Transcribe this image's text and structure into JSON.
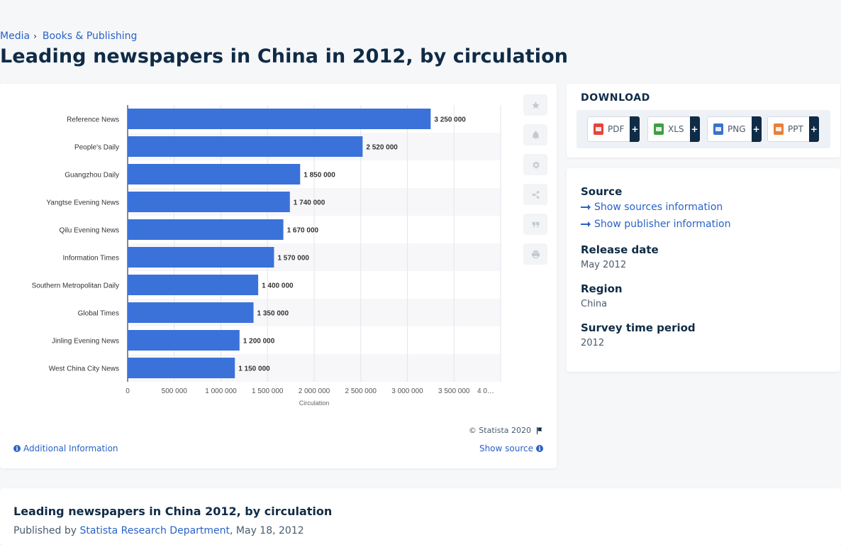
{
  "breadcrumb": {
    "items": [
      "Media",
      "Books & Publishing"
    ],
    "separator": "›"
  },
  "page_title": "Leading newspapers in China in 2012, by circulation",
  "toolbar": {
    "icons": [
      "star-icon",
      "bell-icon",
      "gear-icon",
      "share-icon",
      "quote-icon",
      "print-icon"
    ]
  },
  "chart_footer": {
    "copyright": "© Statista 2020",
    "additional_info": "Additional Information",
    "show_source": "Show source"
  },
  "download": {
    "title": "DOWNLOAD",
    "buttons": [
      {
        "label": "PDF",
        "plus": "+",
        "color": "#e2463c"
      },
      {
        "label": "XLS",
        "plus": "+",
        "color": "#3f9e46"
      },
      {
        "label": "PNG",
        "plus": "+",
        "color": "#3b72c8"
      },
      {
        "label": "PPT",
        "plus": "+",
        "color": "#e8803a"
      }
    ]
  },
  "meta": {
    "source_label": "Source",
    "show_sources": "Show sources information",
    "show_publisher": "Show publisher information",
    "release_date_label": "Release date",
    "release_date": "May 2012",
    "region_label": "Region",
    "region": "China",
    "survey_label": "Survey time period",
    "survey": "2012"
  },
  "bottom": {
    "title": "Leading newspapers in China 2012, by circulation",
    "published_prefix": "Published by",
    "publisher": "Statista Research Department",
    "date": ", May 18, 2012"
  },
  "colors": {
    "bar": "#3b72d9",
    "accent": "#2a62c6",
    "text": "#0f2b46"
  },
  "chart_data": {
    "type": "bar",
    "orientation": "horizontal",
    "categories": [
      "Reference News",
      "People's Daily",
      "Guangzhou Daily",
      "Yangtse Evening News",
      "Qilu Evening News",
      "Information Times",
      "Southern Metropolitan Daily",
      "Global Times",
      "Jinling Evening News",
      "West China City News"
    ],
    "values": [
      3250000,
      2520000,
      1850000,
      1740000,
      1670000,
      1570000,
      1400000,
      1350000,
      1200000,
      1150000
    ],
    "value_labels": [
      "3 250 000",
      "2 520 000",
      "1 850 000",
      "1 740 000",
      "1 670 000",
      "1 570 000",
      "1 400 000",
      "1 350 000",
      "1 200 000",
      "1 150 000"
    ],
    "xlabel": "Circulation",
    "xlim": [
      0,
      4000000
    ],
    "xticks": [
      0,
      500000,
      1000000,
      1500000,
      2000000,
      2500000,
      3000000,
      3500000,
      4000000
    ],
    "xtick_labels": [
      "0",
      "500 000",
      "1 000 000",
      "1 500 000",
      "2 000 000",
      "2 500 000",
      "3 000 000",
      "3 500 000",
      "4 0…"
    ],
    "grid": true
  }
}
